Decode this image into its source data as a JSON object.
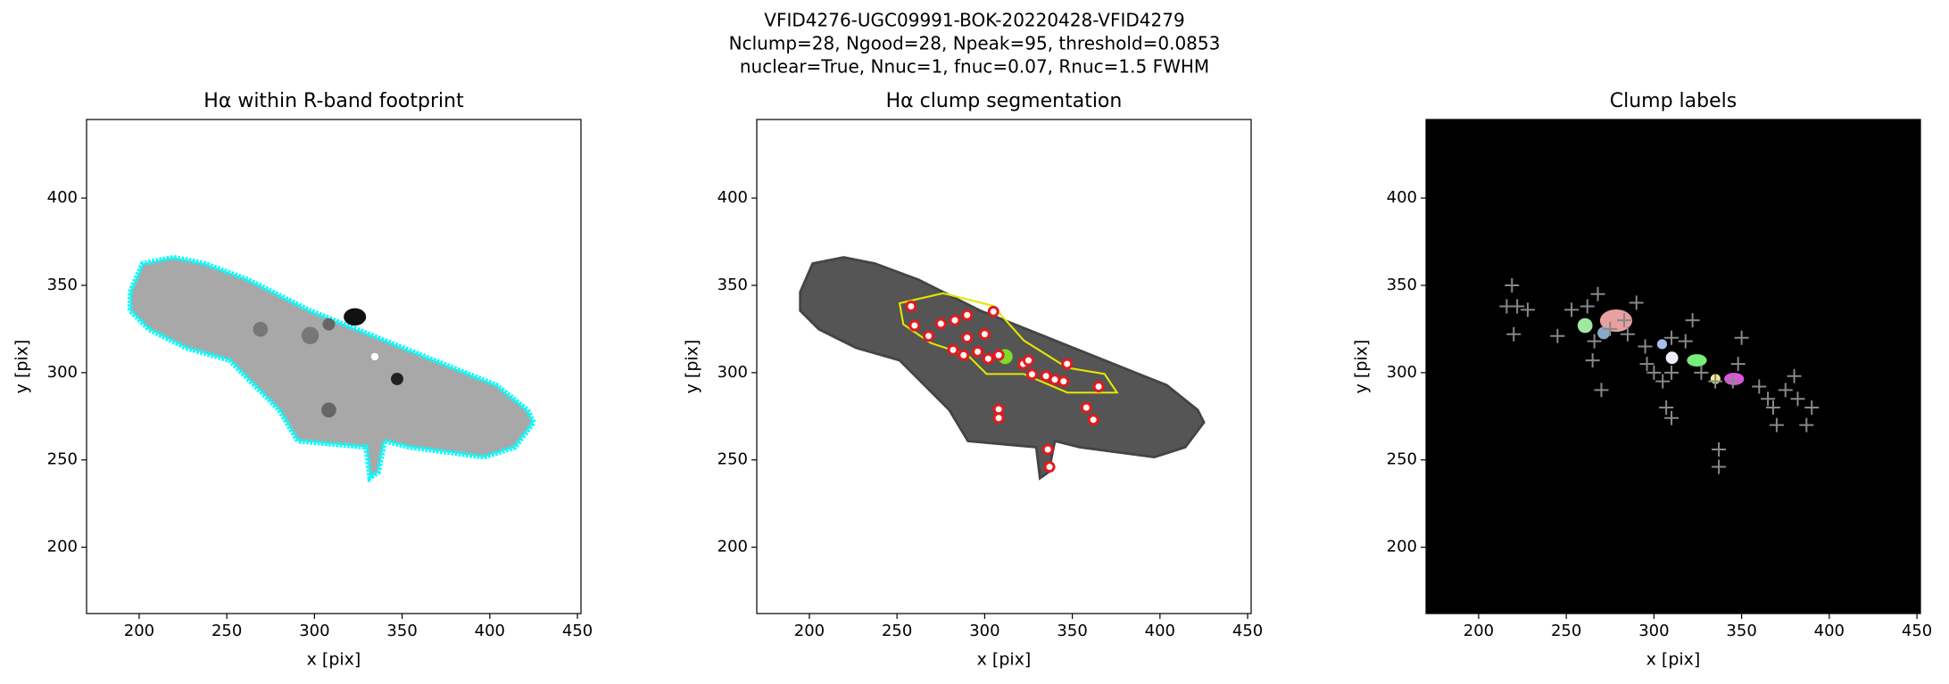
{
  "title": [
    "VFID4276-UGC09991-BOK-20220428-VFID4279",
    "Nclump=28, Ngood=28, Npeak=95, threshold=0.0853",
    "nuclear=True, Nnuc=1, fnuc=0.07, Rnuc=1.5 FWHM"
  ],
  "chart_data": [
    {
      "type": "image",
      "title": "Hα within R-band footprint",
      "xlabel": "x [pix]",
      "ylabel": "y [pix]",
      "xlim": [
        170,
        452
      ],
      "ylim": [
        162,
        445
      ],
      "xticks": [
        200,
        250,
        300,
        350,
        400,
        450
      ],
      "yticks": [
        200,
        250,
        300,
        350,
        400
      ],
      "cmap": "gray",
      "footprint_color": "#00ffff"
    },
    {
      "type": "image",
      "title": "Hα clump segmentation",
      "xlabel": "x [pix]",
      "ylabel": "y [pix]",
      "xlim": [
        170,
        452
      ],
      "ylim": [
        162,
        445
      ],
      "xticks": [
        200,
        250,
        300,
        350,
        400,
        450
      ],
      "yticks": [
        200,
        250,
        300,
        350,
        400
      ],
      "series": [
        {
          "name": "clumps",
          "color": "#e41a1c",
          "x": [
            258,
            260,
            268,
            275,
            283,
            290,
            305,
            290,
            300,
            282,
            288,
            296,
            308,
            322,
            327,
            335,
            340,
            345,
            347,
            358,
            362,
            365,
            308,
            308,
            336,
            337,
            325,
            302
          ],
          "y": [
            338,
            327,
            321,
            328,
            330,
            333,
            335,
            320,
            322,
            313,
            310,
            312,
            310,
            305,
            299,
            298,
            296,
            295,
            305,
            280,
            273,
            292,
            279,
            274,
            256,
            246,
            307,
            308
          ]
        }
      ]
    },
    {
      "type": "scatter",
      "title": "Clump labels",
      "xlabel": "x [pix]",
      "ylabel": "y [pix]",
      "xlim": [
        170,
        452
      ],
      "ylim": [
        162,
        445
      ],
      "xticks": [
        200,
        250,
        300,
        350,
        400,
        450
      ],
      "yticks": [
        200,
        250,
        300,
        350,
        400
      ],
      "series": [
        {
          "name": "peaks",
          "color": "#888888",
          "x": [
            219,
            222,
            216,
            228,
            220,
            245,
            253,
            262,
            268,
            266,
            265,
            275,
            283,
            290,
            285,
            295,
            296,
            300,
            310,
            318,
            322,
            310,
            305,
            327,
            335,
            350,
            348,
            345,
            360,
            365,
            375,
            380,
            368,
            382,
            390,
            387,
            370,
            307,
            310,
            337,
            337,
            270
          ],
          "y": [
            350,
            338,
            338,
            336,
            322,
            321,
            336,
            338,
            345,
            318,
            307,
            325,
            330,
            340,
            322,
            315,
            305,
            300,
            320,
            318,
            330,
            300,
            295,
            300,
            295,
            320,
            305,
            295,
            292,
            285,
            290,
            298,
            280,
            285,
            280,
            270,
            270,
            280,
            274,
            256,
            246,
            290
          ]
        }
      ]
    }
  ]
}
